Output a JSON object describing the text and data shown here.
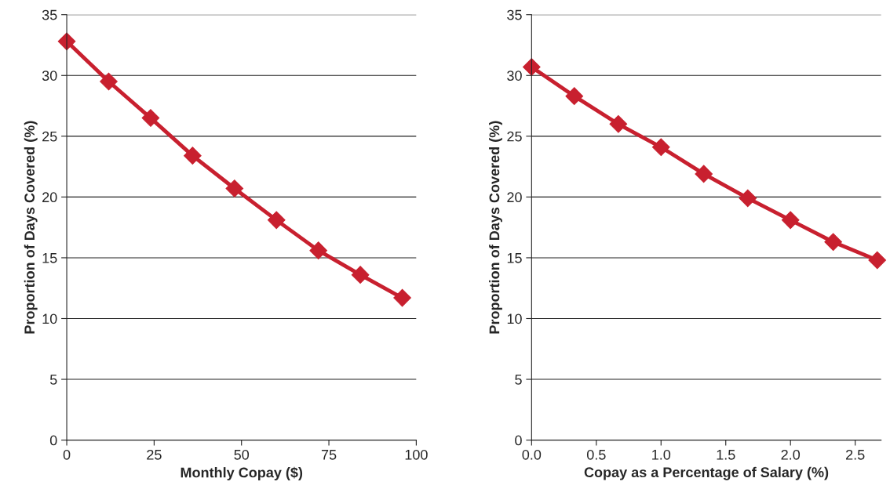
{
  "chart_data": [
    {
      "type": "line",
      "xlabel": "Monthly Copay ($)",
      "ylabel": "Proportion of Days Covered (%)",
      "x": [
        0,
        12,
        24,
        36,
        48,
        60,
        72,
        84,
        96
      ],
      "series": [
        {
          "color": "#c8202f",
          "values": [
            32.8,
            29.5,
            26.5,
            23.4,
            20.7,
            18.1,
            15.6,
            13.6,
            11.7
          ]
        }
      ],
      "xlim": [
        0,
        100
      ],
      "xticks": [
        0,
        25,
        50,
        75,
        100
      ],
      "ylim": [
        0,
        35
      ],
      "yticks": [
        0,
        5,
        10,
        15,
        20,
        25,
        30,
        35
      ],
      "grid": "y",
      "marker": "diamond",
      "line_style": "solid"
    },
    {
      "type": "line",
      "xlabel": "Copay as a Percentage of Salary (%)",
      "ylabel": "Proportion of Days Covered (%)",
      "x": [
        0,
        0.33,
        0.67,
        1.0,
        1.33,
        1.67,
        2.0,
        2.33,
        2.67
      ],
      "series": [
        {
          "color": "#c8202f",
          "values": [
            30.7,
            28.3,
            26.0,
            24.1,
            21.9,
            19.9,
            18.1,
            16.3,
            14.8
          ]
        }
      ],
      "xlim": [
        0,
        2.7
      ],
      "xticks": [
        {
          "value": 0,
          "label": "0.0"
        },
        0.5,
        {
          "value": 1,
          "label": "1.0"
        },
        1.5,
        {
          "value": 2,
          "label": "2.0"
        },
        2.5
      ],
      "ylim": [
        0,
        35
      ],
      "yticks": [
        0,
        5,
        10,
        15,
        20,
        25,
        30,
        35
      ],
      "grid": "y",
      "marker": "diamond",
      "line_style": "solid"
    }
  ]
}
